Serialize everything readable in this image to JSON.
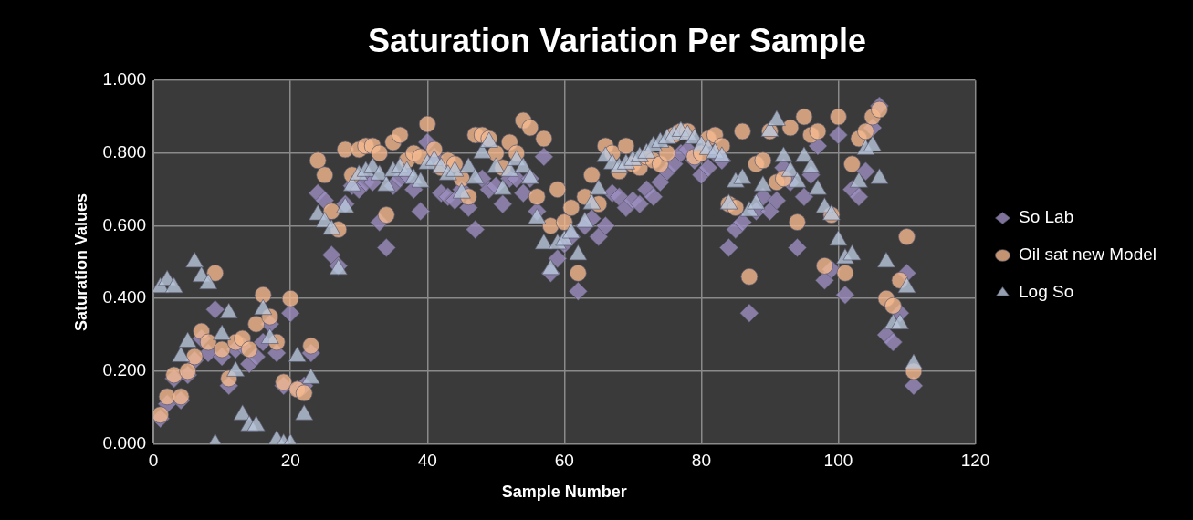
{
  "chart_data": {
    "type": "scatter",
    "title": "Saturation Variation Per Sample",
    "xlabel": "Sample Number",
    "ylabel": "Saturation Values",
    "x": [
      1,
      2,
      3,
      4,
      5,
      6,
      7,
      8,
      9,
      10,
      11,
      12,
      13,
      14,
      15,
      16,
      17,
      18,
      19,
      20,
      21,
      22,
      23,
      24,
      25,
      26,
      27,
      28,
      29,
      30,
      31,
      32,
      33,
      34,
      35,
      36,
      37,
      38,
      39,
      40,
      41,
      42,
      43,
      44,
      45,
      46,
      47,
      48,
      49,
      50,
      51,
      52,
      53,
      54,
      55,
      56,
      57,
      58,
      59,
      60,
      61,
      62,
      63,
      64,
      65,
      66,
      67,
      68,
      69,
      70,
      71,
      72,
      73,
      74,
      75,
      76,
      77,
      78,
      79,
      80,
      81,
      82,
      83,
      84,
      85,
      86,
      87,
      88,
      89,
      90,
      91,
      92,
      93,
      94,
      95,
      96,
      97,
      98,
      99,
      100,
      101,
      102,
      103,
      104,
      105,
      106,
      107,
      108,
      109,
      110,
      111
    ],
    "series": [
      {
        "name": "So Lab",
        "color": "#9e8fc0",
        "marker": "diamond",
        "values": [
          0.07,
          0.11,
          0.18,
          0.12,
          0.19,
          0.23,
          0.29,
          0.25,
          0.37,
          0.24,
          0.16,
          0.26,
          0.27,
          0.22,
          0.24,
          0.28,
          0.33,
          0.25,
          0.16,
          0.36,
          0.15,
          0.16,
          0.25,
          0.69,
          0.67,
          0.52,
          0.49,
          0.66,
          0.71,
          0.7,
          0.72,
          0.72,
          0.61,
          0.54,
          0.71,
          0.73,
          0.74,
          0.7,
          0.64,
          0.83,
          0.79,
          0.69,
          0.68,
          0.67,
          0.7,
          0.65,
          0.59,
          0.73,
          0.7,
          0.71,
          0.66,
          0.73,
          0.73,
          0.69,
          0.73,
          0.64,
          0.79,
          0.47,
          0.51,
          0.55,
          0.57,
          0.42,
          0.6,
          0.62,
          0.57,
          0.6,
          0.69,
          0.68,
          0.65,
          0.67,
          0.66,
          0.7,
          0.68,
          0.72,
          0.75,
          0.77,
          0.8,
          0.81,
          0.78,
          0.74,
          0.76,
          0.8,
          0.78,
          0.54,
          0.59,
          0.61,
          0.36,
          0.64,
          0.68,
          0.64,
          0.67,
          0.76,
          0.72,
          0.54,
          0.68,
          0.74,
          0.82,
          0.45,
          0.48,
          0.85,
          0.41,
          0.7,
          0.68,
          0.75,
          0.87,
          0.93,
          0.3,
          0.28,
          0.36,
          0.47,
          0.16
        ]
      },
      {
        "name": "Oil sat new Model",
        "color": "#f5b98f",
        "marker": "circle",
        "values": [
          0.08,
          0.13,
          0.19,
          0.13,
          0.2,
          0.24,
          0.31,
          0.28,
          0.47,
          0.26,
          0.18,
          0.28,
          0.29,
          0.26,
          0.33,
          0.41,
          0.35,
          0.28,
          0.17,
          0.4,
          0.15,
          0.14,
          0.27,
          0.78,
          0.74,
          0.64,
          0.59,
          0.81,
          0.74,
          0.81,
          0.82,
          0.82,
          0.8,
          0.63,
          0.83,
          0.85,
          0.78,
          0.8,
          0.79,
          0.88,
          0.81,
          0.76,
          0.78,
          0.77,
          0.73,
          0.68,
          0.85,
          0.85,
          0.84,
          0.8,
          0.76,
          0.83,
          0.8,
          0.89,
          0.87,
          0.68,
          0.84,
          0.6,
          0.7,
          0.61,
          0.65,
          0.47,
          0.68,
          0.74,
          0.66,
          0.82,
          0.8,
          0.75,
          0.82,
          0.77,
          0.76,
          0.79,
          0.78,
          0.77,
          0.8,
          0.85,
          0.86,
          0.86,
          0.79,
          0.8,
          0.84,
          0.85,
          0.82,
          0.66,
          0.65,
          0.86,
          0.46,
          0.77,
          0.78,
          0.86,
          0.72,
          0.73,
          0.87,
          0.61,
          0.9,
          0.85,
          0.86,
          0.49,
          0.63,
          0.9,
          0.47,
          0.77,
          0.84,
          0.86,
          0.9,
          0.92,
          0.4,
          0.38,
          0.45,
          0.57,
          0.2
        ]
      },
      {
        "name": "Log So",
        "color": "#b9c7dc",
        "marker": "triangle",
        "values": [
          0.43,
          0.45,
          0.43,
          0.24,
          0.28,
          0.5,
          0.46,
          0.44,
          0.0,
          0.3,
          0.36,
          0.2,
          0.08,
          0.05,
          0.05,
          0.37,
          0.29,
          0.01,
          0.0,
          0.0,
          0.24,
          0.08,
          0.18,
          0.63,
          0.61,
          0.59,
          0.48,
          0.65,
          0.71,
          0.74,
          0.75,
          0.76,
          0.74,
          0.71,
          0.75,
          0.76,
          0.75,
          0.73,
          0.72,
          0.77,
          0.78,
          0.76,
          0.74,
          0.75,
          0.69,
          0.76,
          0.73,
          0.8,
          0.83,
          0.76,
          0.7,
          0.75,
          0.78,
          0.76,
          0.73,
          0.62,
          0.55,
          0.48,
          0.55,
          0.56,
          0.58,
          0.52,
          0.61,
          0.66,
          0.7,
          0.79,
          0.77,
          0.76,
          0.77,
          0.78,
          0.79,
          0.8,
          0.82,
          0.83,
          0.84,
          0.85,
          0.86,
          0.85,
          0.84,
          0.82,
          0.81,
          0.8,
          0.79,
          0.66,
          0.72,
          0.73,
          0.64,
          0.66,
          0.71,
          0.86,
          0.89,
          0.79,
          0.75,
          0.72,
          0.79,
          0.76,
          0.7,
          0.65,
          0.63,
          0.56,
          0.51,
          0.52,
          0.72,
          0.81,
          0.82,
          0.73,
          0.5,
          0.33,
          0.33,
          0.43,
          0.22
        ]
      }
    ],
    "xlim": [
      0,
      120
    ],
    "xticks": [
      0,
      20,
      40,
      60,
      80,
      100,
      120
    ],
    "ylim": [
      0,
      1
    ],
    "yticks": [
      {
        "value": 0,
        "label": "0.000"
      },
      {
        "value": 0.2,
        "label": "0.200"
      },
      {
        "value": 0.4,
        "label": "0.400"
      },
      {
        "value": 0.6,
        "label": "0.600"
      },
      {
        "value": 0.8,
        "label": "0.800"
      },
      {
        "value": 1,
        "label": "1.000"
      }
    ],
    "grid": true,
    "legend": "right"
  }
}
